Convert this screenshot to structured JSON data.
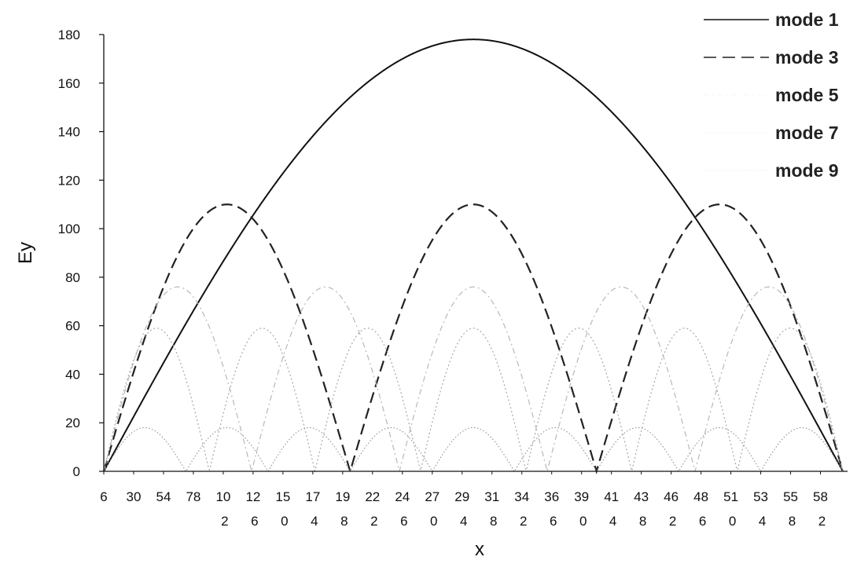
{
  "chart_data": {
    "type": "line",
    "title": "",
    "xlabel": "x",
    "ylabel": "Ey",
    "ylim": [
      0,
      180
    ],
    "yticks": [
      0,
      20,
      40,
      60,
      80,
      100,
      120,
      140,
      160,
      180
    ],
    "xlim": [
      6,
      600
    ],
    "xtick_labels": [
      {
        "value": 6,
        "line1": "6",
        "line2": ""
      },
      {
        "value": 30,
        "line1": "30",
        "line2": ""
      },
      {
        "value": 54,
        "line1": "54",
        "line2": ""
      },
      {
        "value": 78,
        "line1": "78",
        "line2": ""
      },
      {
        "value": 102,
        "line1": "10",
        "line2": "2"
      },
      {
        "value": 126,
        "line1": "12",
        "line2": "6"
      },
      {
        "value": 150,
        "line1": "15",
        "line2": "0"
      },
      {
        "value": 174,
        "line1": "17",
        "line2": "4"
      },
      {
        "value": 198,
        "line1": "19",
        "line2": "8"
      },
      {
        "value": 222,
        "line1": "22",
        "line2": "2"
      },
      {
        "value": 246,
        "line1": "24",
        "line2": "6"
      },
      {
        "value": 270,
        "line1": "27",
        "line2": "0"
      },
      {
        "value": 294,
        "line1": "29",
        "line2": "4"
      },
      {
        "value": 318,
        "line1": "31",
        "line2": "8"
      },
      {
        "value": 342,
        "line1": "34",
        "line2": "2"
      },
      {
        "value": 366,
        "line1": "36",
        "line2": "6"
      },
      {
        "value": 390,
        "line1": "39",
        "line2": "0"
      },
      {
        "value": 414,
        "line1": "41",
        "line2": "4"
      },
      {
        "value": 438,
        "line1": "43",
        "line2": "8"
      },
      {
        "value": 462,
        "line1": "46",
        "line2": "2"
      },
      {
        "value": 486,
        "line1": "48",
        "line2": "6"
      },
      {
        "value": 510,
        "line1": "51",
        "line2": "0"
      },
      {
        "value": 534,
        "line1": "53",
        "line2": "4"
      },
      {
        "value": 558,
        "line1": "55",
        "line2": "8"
      },
      {
        "value": 582,
        "line1": "58",
        "line2": "2"
      }
    ],
    "grid": false,
    "legend_position": "top-right",
    "series": [
      {
        "name": "mode 1",
        "mode": 1,
        "amplitude": 178,
        "color": "#111111",
        "dash": "solid"
      },
      {
        "name": "mode 3",
        "mode": 3,
        "amplitude": 110,
        "color": "#222222",
        "dash": "dashed"
      },
      {
        "name": "mode 5",
        "mode": 5,
        "amplitude": 76,
        "color": "#b8b8b8",
        "dash": "dash-dot"
      },
      {
        "name": "mode 7",
        "mode": 7,
        "amplitude": 59,
        "color": "#a8a8a8",
        "dash": "dotted"
      },
      {
        "name": "mode 9",
        "mode": 9,
        "amplitude": 18,
        "color": "#909090",
        "dash": "dotted-fine"
      }
    ]
  }
}
